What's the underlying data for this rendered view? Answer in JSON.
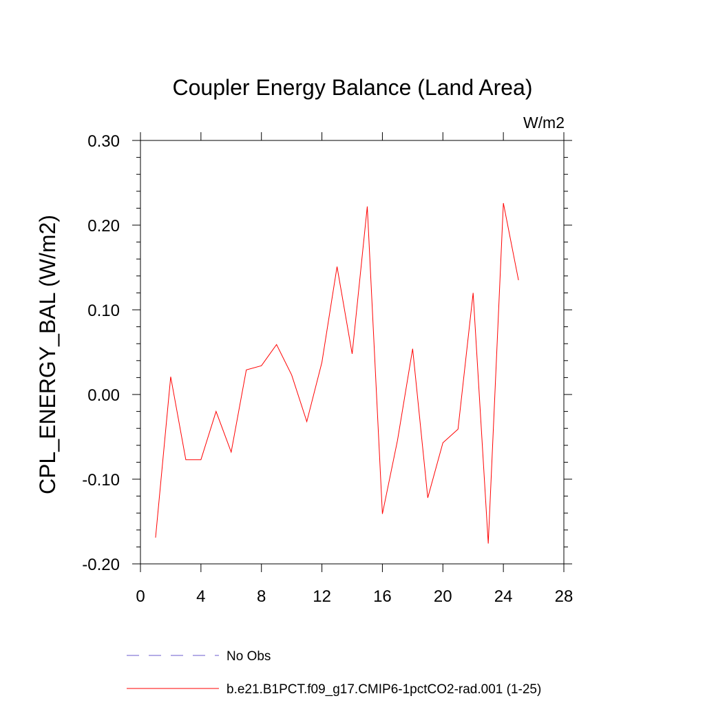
{
  "chart_data": {
    "type": "line",
    "title": "Coupler Energy Balance (Land Area)",
    "units_label": "W/m2",
    "xlabel": "",
    "ylabel": "CPL_ENERGY_BAL  (W/m2)",
    "xlim": [
      0,
      28
    ],
    "ylim": [
      -0.2,
      0.3
    ],
    "x_ticks": [
      0,
      4,
      8,
      12,
      16,
      20,
      24,
      28
    ],
    "x_tick_labels": [
      "0",
      "4",
      "8",
      "12",
      "16",
      "20",
      "24",
      "28"
    ],
    "y_ticks": [
      -0.2,
      -0.1,
      0.0,
      0.1,
      0.2,
      0.3
    ],
    "y_tick_labels": [
      "-0.20",
      "-0.10",
      "0.00",
      "0.10",
      "0.20",
      "0.30"
    ],
    "grid": false,
    "legend_position": "bottom",
    "series": [
      {
        "name": "No Obs",
        "color": "#6a5acd",
        "dash": "dashed",
        "x": [],
        "y": []
      },
      {
        "name": "b.e21.B1PCT.f09_g17.CMIP6-1pctCO2-rad.001 (1-25)",
        "color": "#ff0000",
        "dash": "solid",
        "x": [
          1,
          2,
          3,
          4,
          5,
          6,
          7,
          8,
          9,
          10,
          11,
          12,
          13,
          14,
          15,
          16,
          17,
          18,
          19,
          20,
          21,
          22,
          23,
          24,
          25
        ],
        "y": [
          -0.169,
          0.021,
          -0.077,
          -0.077,
          -0.02,
          -0.068,
          0.029,
          0.034,
          0.059,
          0.023,
          -0.032,
          0.038,
          0.151,
          0.048,
          0.222,
          -0.141,
          -0.054,
          0.054,
          -0.122,
          -0.057,
          -0.041,
          0.12,
          -0.176,
          0.226,
          0.135
        ]
      }
    ]
  }
}
